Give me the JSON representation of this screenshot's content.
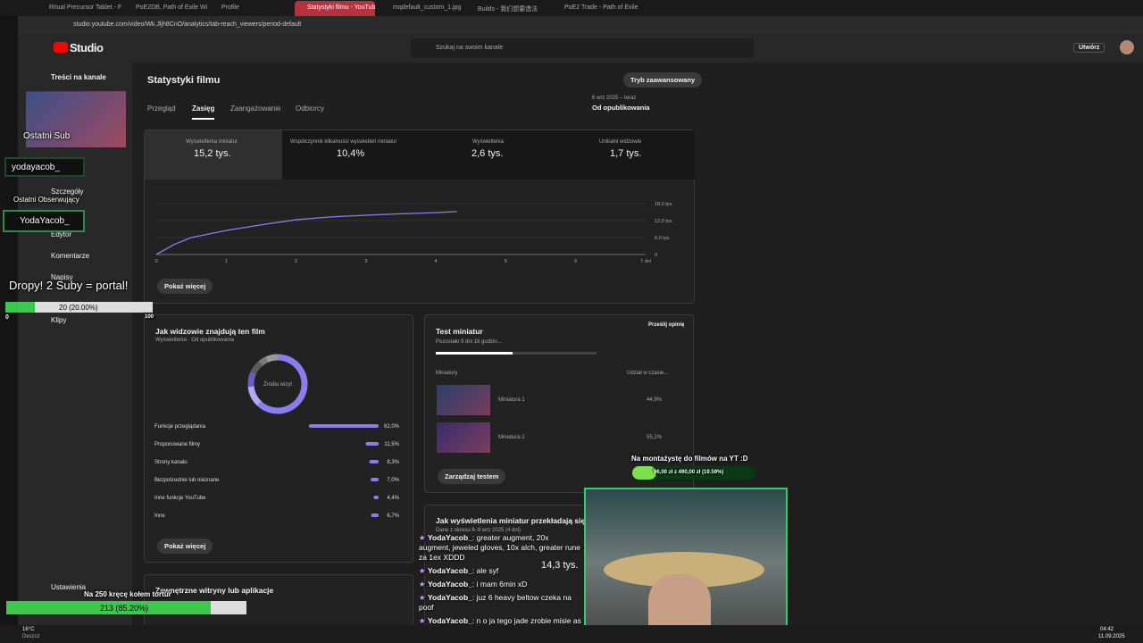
{
  "browser": {
    "tabs": [
      "Ritual Precursor Tablet - F",
      "PoE2DB, Path of Exile Wi",
      "Profile",
      "Statystyki filmu - YouTub",
      "mqdefault_custom_1.jpg",
      "Builds - 我们想要造法",
      "PoE2 Trade - Path of Exile"
    ],
    "url": "studio.youtube.com/video/Wk.Jljh8CnO/analytics/tab-reach_viewers/period-default"
  },
  "header": {
    "logo": "Studio",
    "search": "Szukaj na swoim kanale",
    "create": "Utwórz"
  },
  "sidebar": {
    "back": "Treści na kanale",
    "items": [
      "Szczegóły",
      "Edytor",
      "Komentarze",
      "Napisy",
      "Klipy"
    ],
    "settings": "Ustawienia"
  },
  "main": {
    "title": "Statystyki filmu",
    "advanced": "Tryb zaawansowany",
    "tabs": [
      "Przegląd",
      "Zasięg",
      "Zaangażowanie",
      "Odbiorcy"
    ],
    "date_range": "6 wrz 2025 – teraz",
    "period": "Od opublikowania",
    "metrics": [
      {
        "label": "Wyświetlenia miniatur",
        "value": "15,2 tys."
      },
      {
        "label": "Współczynnik klikalności wyświetleń miniatur",
        "value": "10,4%"
      },
      {
        "label": "Wyświetlenia",
        "value": "2,6 tys."
      },
      {
        "label": "Unikalni widzowie",
        "value": "1,7 tys."
      }
    ],
    "chart": {
      "x": [
        0,
        0.25,
        0.5,
        1,
        1.5,
        2,
        2.5,
        3,
        3.5,
        4,
        4.3
      ],
      "values": [
        0,
        3500,
        6000,
        8500,
        10500,
        12300,
        13300,
        13900,
        14400,
        14800,
        15200
      ],
      "xlim": [
        0,
        7
      ],
      "ylim": [
        0,
        18000
      ],
      "xticks": [
        0,
        1,
        2,
        3,
        4,
        5,
        6,
        {
          "value": 7,
          "label": "7 dni"
        }
      ],
      "yticks": [
        0,
        {
          "value": 6000,
          "label": "6,0 tys."
        },
        {
          "value": 12000,
          "label": "12,0 tys."
        },
        {
          "value": 18000,
          "label": "18,0 tys."
        }
      ],
      "color": "#8d7cf0"
    },
    "show_more": "Pokaż więcej"
  },
  "traffic": {
    "title": "Jak widzowie znajdują ten film",
    "subtitle": "Wyświetlenia · Od opublikowania",
    "center": "Źródła wizyt",
    "button": "Pokaż więcej",
    "rows": [
      {
        "name": "Funkcje przeglądania",
        "value": 62,
        "label": "62,0%"
      },
      {
        "name": "Proponowane filmy",
        "value": 11.5,
        "label": "11,5%"
      },
      {
        "name": "Strony kanału",
        "value": 8.3,
        "label": "8,3%"
      },
      {
        "name": "Bezpośrednie lub nieznane",
        "value": 7,
        "label": "7,0%"
      },
      {
        "name": "Inne funkcje YouTube",
        "value": 4.4,
        "label": "4,4%"
      },
      {
        "name": "Inne",
        "value": 6.7,
        "label": "6,7%"
      }
    ]
  },
  "test": {
    "title": "Test miniatur",
    "feedback": "Prześlij opinię",
    "remaining": "Pozostało 9 dni 16 godzin...",
    "col1": "Miniatury",
    "col2": "Udział w czasie...",
    "rows": [
      {
        "name": "Miniatura 1",
        "share": "44,9%"
      },
      {
        "name": "Miniatura 2",
        "share": "55,1%"
      }
    ],
    "button": "Zarządzaj testem"
  },
  "ctr_card": {
    "title": "Jak wyświetlenia miniatur przekładają się",
    "subtitle": "Dane z okresu 6–9 wrz 2025 (4 dni)",
    "value": "14,3 tys."
  },
  "external": {
    "title": "Zewnętrzne witryny lub aplikacje"
  },
  "overlay": {
    "last_sub_name": "yodayacob_",
    "last_sub": "Ostatni Sub",
    "last_follower": "Ostatni Obserwujący",
    "last_follower_name": "YodaYacob_",
    "drops": "Dropy! 2 Suby = portal!",
    "drops_progress": "20 (20.00%)",
    "drops_min": "0",
    "drops_max": "100",
    "wheel": "Na 250 kręcę kołem tortur",
    "wheel_progress": "213 (85.20%)",
    "editor": "Na montażystę do filmów na YT :D",
    "editor_progress": "96,00 zł z 490,00 zł (19.59%)"
  },
  "chat": [
    {
      "user": "YodaYacob_",
      "text": "greater augment, 20x augment, jeweled gloves, 10x alch, greater rune za 1ex XDDD"
    },
    {
      "user": "YodaYacob_",
      "text": "ale syf"
    },
    {
      "user": "YodaYacob_",
      "text": "i mam 6min xD"
    },
    {
      "user": "YodaYacob_",
      "text": "juz 6 heavy beltow czeka na poof"
    },
    {
      "user": "YodaYacob_",
      "text": "n o ja tego jade zrobie misie as i ide spac xD"
    }
  ],
  "taskbar": {
    "weather_temp": "16°C",
    "weather": "Deszcz",
    "time": "04:42",
    "date": "11.09.2025"
  }
}
